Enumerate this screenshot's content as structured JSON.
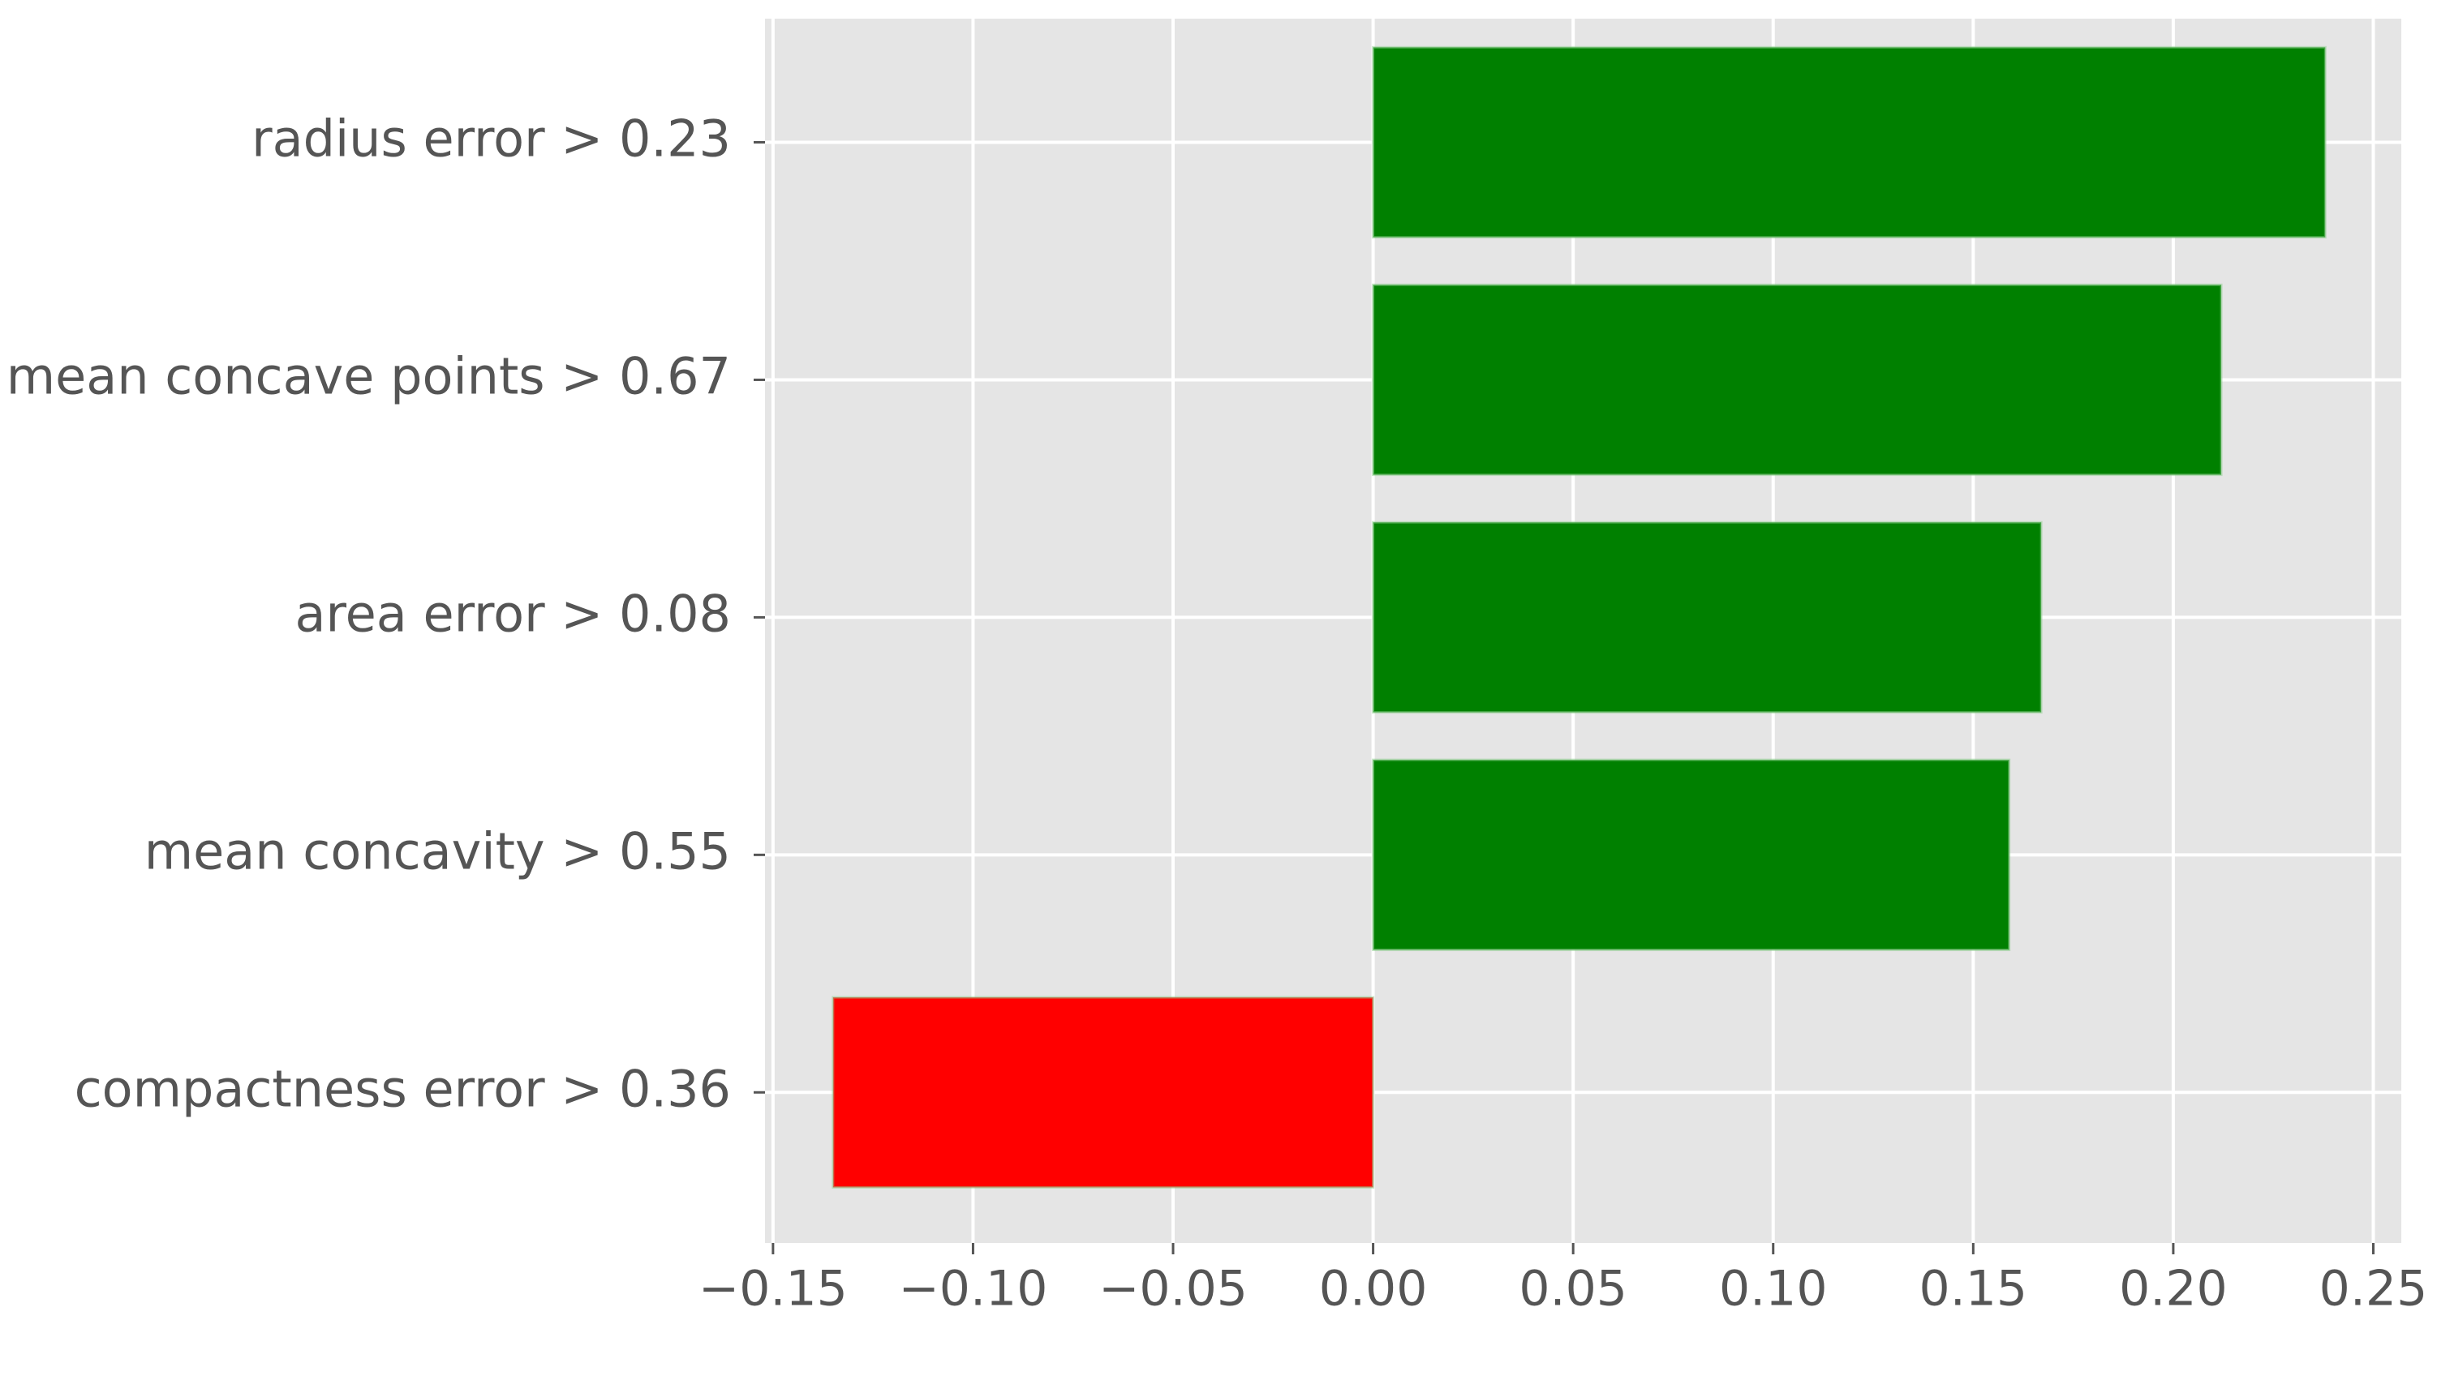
{
  "chart_data": {
    "type": "barh",
    "categories": [
      "radius error > 0.23",
      "mean concave points > 0.67",
      "area error > 0.08",
      "mean concavity > 0.55",
      "compactness error > 0.36"
    ],
    "values": [
      0.238,
      0.212,
      0.167,
      0.159,
      -0.135
    ],
    "colors": [
      "#008000",
      "#008000",
      "#008000",
      "#008000",
      "#ff0000"
    ],
    "xlim": [
      -0.152,
      0.257
    ],
    "xticks": [
      {
        "value": -0.15,
        "label": "−0.15"
      },
      {
        "value": -0.1,
        "label": "−0.10"
      },
      {
        "value": -0.05,
        "label": "−0.05"
      },
      {
        "value": 0,
        "label": "0.00"
      },
      {
        "value": 0.05,
        "label": "0.05"
      },
      {
        "value": 0.1,
        "label": "0.10"
      },
      {
        "value": 0.15,
        "label": "0.15"
      },
      {
        "value": 0.2,
        "label": "0.20"
      },
      {
        "value": 0.25,
        "label": "0.25"
      }
    ],
    "grid": true
  }
}
